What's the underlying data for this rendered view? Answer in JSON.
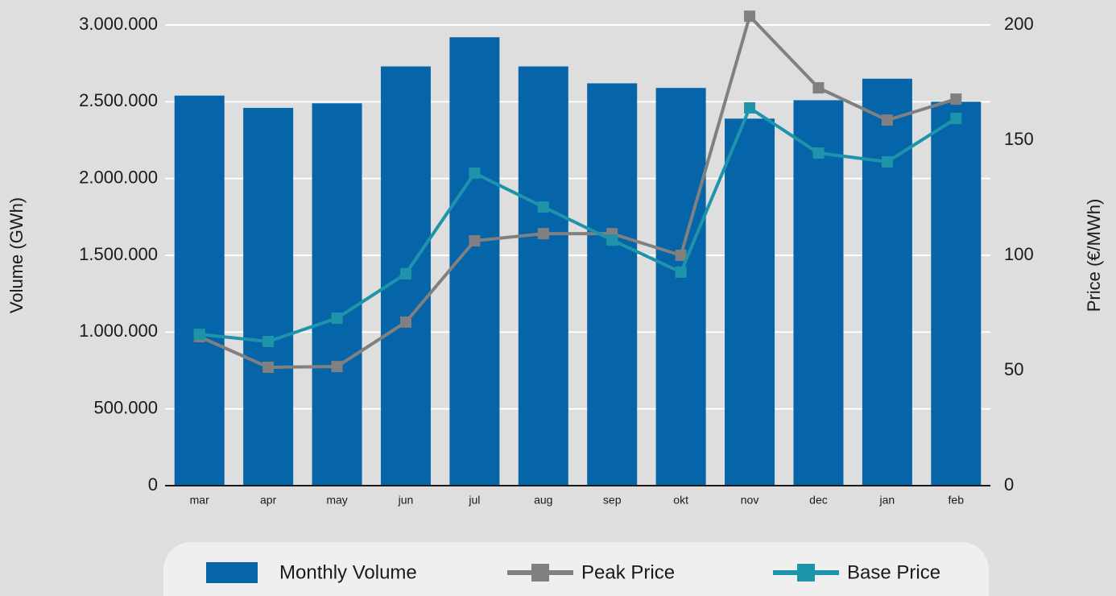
{
  "chart_data": {
    "type": "bar",
    "categories": [
      "mar",
      "apr",
      "may",
      "jun",
      "jul",
      "aug",
      "sep",
      "okt",
      "nov",
      "dec",
      "jan",
      "feb"
    ],
    "series": [
      {
        "name": "Monthly Volume",
        "type": "bar",
        "color": "#0565a8",
        "values": [
          2540000,
          2460000,
          2490000,
          2730000,
          2920000,
          2730000,
          2620000,
          2590000,
          2390000,
          2510000,
          2650000,
          2500000
        ]
      },
      {
        "name": "Peak Price",
        "type": "line",
        "axis": "y2",
        "color": "#808080",
        "values": [
          64.7,
          51.4,
          51.7,
          71,
          106.3,
          109.4,
          109.4,
          100,
          203.8,
          172.7,
          158.7,
          167.8
        ]
      },
      {
        "name": "Base Price",
        "type": "line",
        "axis": "y2",
        "color": "#1e94ab",
        "values": [
          65.7,
          62.6,
          72.7,
          92,
          135.7,
          121,
          106.6,
          92.7,
          164,
          144.4,
          140.6,
          159.4
        ]
      }
    ],
    "ylabel": "Volume (GWh)",
    "y2label": "Price (€/MWh)",
    "ylim": [
      0,
      3000000
    ],
    "yticks": [
      0,
      {
        "value": 500000,
        "label": "500.000"
      },
      {
        "value": 1000000,
        "label": "1.000.000"
      },
      {
        "value": 1500000,
        "label": "1.500.000"
      },
      {
        "value": 2000000,
        "label": "2.000.000"
      },
      {
        "value": 2500000,
        "label": "2.500.000"
      },
      {
        "value": 3000000,
        "label": "3.000.000"
      }
    ],
    "y2lim": [
      0,
      200
    ],
    "y2ticks": [
      0,
      50,
      100,
      150,
      200
    ],
    "grid": true,
    "legend": "bottom"
  }
}
